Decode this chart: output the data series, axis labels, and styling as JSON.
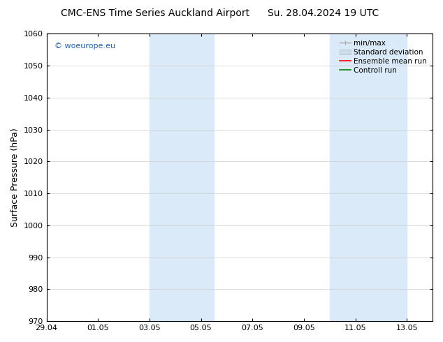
{
  "title_left": "CMC-ENS Time Series Auckland Airport",
  "title_right": "Su. 28.04.2024 19 UTC",
  "ylabel": "Surface Pressure (hPa)",
  "ylim": [
    970,
    1060
  ],
  "yticks": [
    970,
    980,
    990,
    1000,
    1010,
    1020,
    1030,
    1040,
    1050,
    1060
  ],
  "xtick_labels": [
    "29.04",
    "01.05",
    "03.05",
    "05.05",
    "07.05",
    "09.05",
    "11.05",
    "13.05"
  ],
  "xtick_positions": [
    0,
    2,
    4,
    6,
    8,
    10,
    12,
    14
  ],
  "xlim": [
    0,
    15
  ],
  "shaded_bands": [
    {
      "start": 4.5,
      "end": 5.5
    },
    {
      "start": 5.5,
      "end": 6.5
    },
    {
      "start": 11.5,
      "end": 12.5
    },
    {
      "start": 12.5,
      "end": 13.5
    }
  ],
  "shade_color": "#daeaf8",
  "watermark_text": "© woeurope.eu",
  "watermark_color": "#1a5fb4",
  "legend_labels": [
    "min/max",
    "Standard deviation",
    "Ensemble mean run",
    "Controll run"
  ],
  "legend_colors": [
    "#aaaaaa",
    "#ccdde8",
    "red",
    "green"
  ],
  "bg_color": "#ffffff",
  "grid_color": "#cccccc",
  "title_fontsize": 10,
  "tick_fontsize": 8,
  "ylabel_fontsize": 9
}
